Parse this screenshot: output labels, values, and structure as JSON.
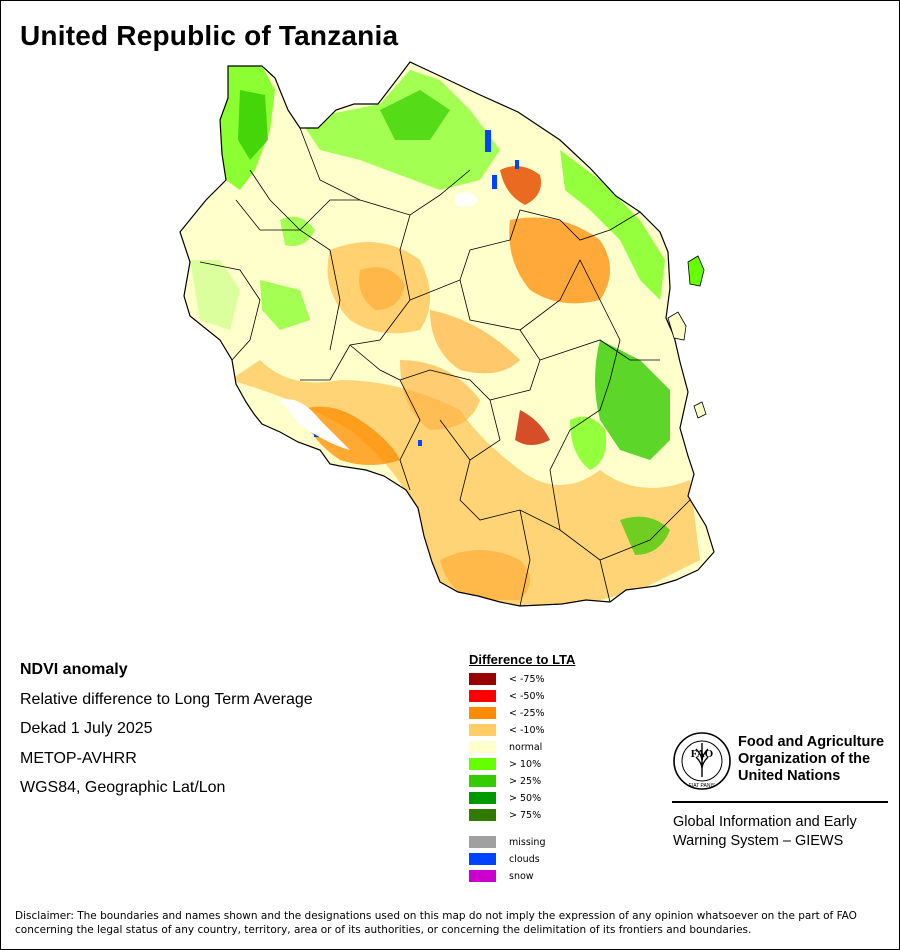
{
  "title": "United Republic of Tanzania",
  "info": {
    "product": "NDVI anomaly",
    "description": "Relative difference to Long Term Average",
    "period": "Dekad 1 July 2025",
    "sensor": "METOP-AVHRR",
    "projection": "WGS84, Geographic Lat/Lon"
  },
  "legend": {
    "title": "Difference to LTA",
    "items": [
      {
        "label": "< -75%",
        "color": "#990000"
      },
      {
        "label": "< -50%",
        "color": "#ff0000"
      },
      {
        "label": "< -25%",
        "color": "#ff8c00"
      },
      {
        "label": "< -10%",
        "color": "#ffcc66"
      },
      {
        "label": "normal",
        "color": "#ffffcc"
      },
      {
        "label": "> 10%",
        "color": "#66ff00"
      },
      {
        "label": "> 25%",
        "color": "#33cc00"
      },
      {
        "label": "> 50%",
        "color": "#009900"
      },
      {
        "label": "> 75%",
        "color": "#337a00"
      }
    ],
    "extras": [
      {
        "label": "missing",
        "color": "#a0a0a0"
      },
      {
        "label": "clouds",
        "color": "#0044ff"
      },
      {
        "label": "snow",
        "color": "#cc00cc"
      }
    ]
  },
  "organization": {
    "name_line1": "Food and Agriculture",
    "name_line2": "Organization of the",
    "name_line3": "United Nations",
    "logo_text": "FAO",
    "logo_motto": "FIAT PANIS",
    "system_line1": "Global Information and Early",
    "system_line2": "Warning System – GIEWS"
  },
  "disclaimer": "Disclaimer: The boundaries and names shown and the designations used on this map do not imply the expression of any opinion whatsoever on the part of FAO concerning the legal status of any country, territory, area or of its authorities, or concerning the delimitation of its frontiers and boundaries."
}
